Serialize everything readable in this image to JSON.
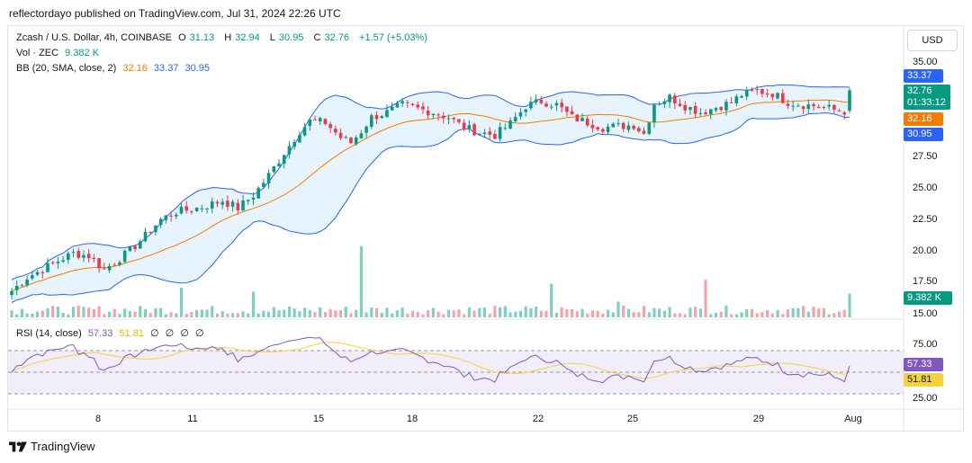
{
  "publisher_line": "reflectordayo published on TradingView.com, Jul 31, 2024 22:26 UTC",
  "footer": {
    "brand": "TradingView"
  },
  "currency_button": "USD",
  "legend": {
    "symbol": "Zcash / U.S. Dollar, 4h, COINBASE",
    "ohlc": [
      {
        "k": "O",
        "v": "31.13"
      },
      {
        "k": "H",
        "v": "32.94"
      },
      {
        "k": "L",
        "v": "30.95"
      },
      {
        "k": "C",
        "v": "32.76"
      }
    ],
    "change": "+1.57 (+5.03%)",
    "vol_label": "Vol · ZEC",
    "vol_value": "9.382 K",
    "bb_label": "BB (20, SMA, close, 2)",
    "bb_basis": "32.16",
    "bb_upper": "33.37",
    "bb_lower": "30.95",
    "rsi_label": "RSI (14, close)",
    "rsi_value": "57.33",
    "rsi_ma": "51.81",
    "rsi_extra": [
      "∅",
      "∅",
      "∅",
      "∅"
    ]
  },
  "price_tags": {
    "upper": "33.37",
    "last": "32.76",
    "countdown": "01:33:12",
    "basis": "32.16",
    "lower": "30.95",
    "volume": "9.382 K",
    "rsi": "57.33",
    "rsi_ma": "51.81"
  },
  "colors": {
    "up": "#089981",
    "down": "#f23645",
    "vol_up": "#7fcfc2",
    "vol_down": "#f4a3a8",
    "bb_band": "#2962ff",
    "bb_basis": "#f57c00",
    "bb_fill": "#e3f2fd",
    "rsi_line": "#7e57c2",
    "rsi_ma": "#f4d23c",
    "rsi_bg": "#ede7f6"
  },
  "chart_data": {
    "type": "candlestick",
    "price_axis_ticks": [
      "35.00",
      "27.50",
      "25.00",
      "22.50",
      "20.00",
      "17.50",
      "15.00"
    ],
    "price_axis_values": [
      35,
      27.5,
      25,
      22.5,
      20,
      17.5,
      15
    ],
    "rsi_axis_ticks": [
      "75.00",
      "25.00"
    ],
    "rsi_axis_values": [
      75,
      25
    ],
    "date_ticks": [
      "8",
      "11",
      "15",
      "18",
      "22",
      "25",
      "29",
      "Aug"
    ],
    "date_tick_index": [
      18,
      36,
      60,
      78,
      102,
      120,
      144,
      163
    ],
    "price_anchors": [
      [
        0,
        16.8
      ],
      [
        3,
        17.9
      ],
      [
        6,
        18.5
      ],
      [
        9,
        19.2
      ],
      [
        12,
        19.8
      ],
      [
        15,
        19.6
      ],
      [
        18,
        18.5
      ],
      [
        20,
        19.1
      ],
      [
        23,
        20.0
      ],
      [
        26,
        21.2
      ],
      [
        29,
        22.5
      ],
      [
        32,
        23.1
      ],
      [
        35,
        23.3
      ],
      [
        38,
        23.6
      ],
      [
        41,
        24.0
      ],
      [
        44,
        23.4
      ],
      [
        47,
        24.4
      ],
      [
        50,
        26.0
      ],
      [
        53,
        27.8
      ],
      [
        56,
        29.5
      ],
      [
        58,
        30.3
      ],
      [
        61,
        30.2
      ],
      [
        64,
        29.0
      ],
      [
        66,
        28.6
      ],
      [
        68,
        29.5
      ],
      [
        70,
        30.6
      ],
      [
        73,
        31.0
      ],
      [
        76,
        31.6
      ],
      [
        79,
        31.3
      ],
      [
        82,
        31.0
      ],
      [
        85,
        30.6
      ],
      [
        88,
        29.8
      ],
      [
        91,
        29.4
      ],
      [
        94,
        29.2
      ],
      [
        97,
        30.1
      ],
      [
        100,
        31.5
      ],
      [
        103,
        31.9
      ],
      [
        106,
        31.6
      ],
      [
        109,
        30.6
      ],
      [
        112,
        30.2
      ],
      [
        115,
        29.8
      ],
      [
        118,
        29.9
      ],
      [
        121,
        30.0
      ],
      [
        123,
        29.3
      ],
      [
        125,
        31.7
      ],
      [
        128,
        32.2
      ],
      [
        131,
        31.5
      ],
      [
        134,
        31.0
      ],
      [
        137,
        31.4
      ],
      [
        140,
        31.8
      ],
      [
        142,
        32.4
      ],
      [
        145,
        32.7
      ],
      [
        148,
        32.5
      ],
      [
        151,
        31.8
      ],
      [
        154,
        31.6
      ],
      [
        157,
        31.5
      ],
      [
        160,
        31.2
      ],
      [
        162,
        31.1
      ]
    ],
    "last_candle": {
      "o": 31.13,
      "h": 32.94,
      "l": 30.95,
      "c": 32.76
    },
    "volume_spikes": [
      [
        68,
        3.6
      ],
      [
        47,
        1.3
      ],
      [
        105,
        1.7
      ],
      [
        118,
        0.8
      ],
      [
        135,
        1.9
      ],
      [
        33,
        1.5
      ]
    ],
    "last_volume_k": 9.382,
    "indicators": {
      "bb": {
        "period": 20,
        "mult": 2,
        "basis": 32.16,
        "upper": 33.37,
        "lower": 30.95
      },
      "rsi": {
        "period": 14,
        "value": 57.33,
        "ma": 51.81
      }
    }
  }
}
